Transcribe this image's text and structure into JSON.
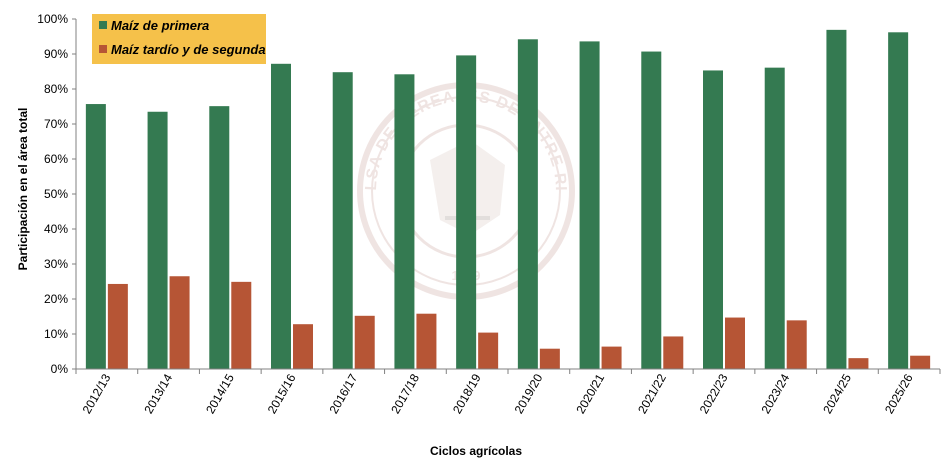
{
  "chart_data": {
    "type": "bar",
    "categories": [
      "2012/13",
      "2013/14",
      "2014/15",
      "2015/16",
      "2016/17",
      "2017/18",
      "2018/19",
      "2019/20",
      "2020/21",
      "2021/22",
      "2022/23",
      "2023/24",
      "2024/25",
      "2025/26"
    ],
    "series": [
      {
        "name": "Maíz de primera",
        "color": "#347A51",
        "values": [
          75.7,
          73.5,
          75.1,
          87.2,
          84.8,
          84.2,
          89.6,
          94.2,
          93.6,
          90.7,
          85.3,
          86.1,
          96.9,
          96.2
        ]
      },
      {
        "name": "Maíz tardío y de segunda",
        "color": "#B65535",
        "values": [
          24.3,
          26.5,
          24.9,
          12.8,
          15.2,
          15.8,
          10.4,
          5.8,
          6.4,
          9.3,
          14.7,
          13.9,
          3.1,
          3.8
        ]
      }
    ],
    "xlabel": "Ciclos agrícolas",
    "ylabel": "Participación en el área total",
    "ylim": [
      0,
      100
    ],
    "yticks": [
      "0%",
      "10%",
      "20%",
      "30%",
      "40%",
      "50%",
      "60%",
      "70%",
      "80%",
      "90%",
      "100%"
    ],
    "legend": {
      "position": "top-left",
      "background": "#F5C14A"
    },
    "grid": false,
    "watermark": {
      "text": "BOLSA DE CEREALES DE ENTRE RIOS",
      "year": "1979"
    }
  }
}
